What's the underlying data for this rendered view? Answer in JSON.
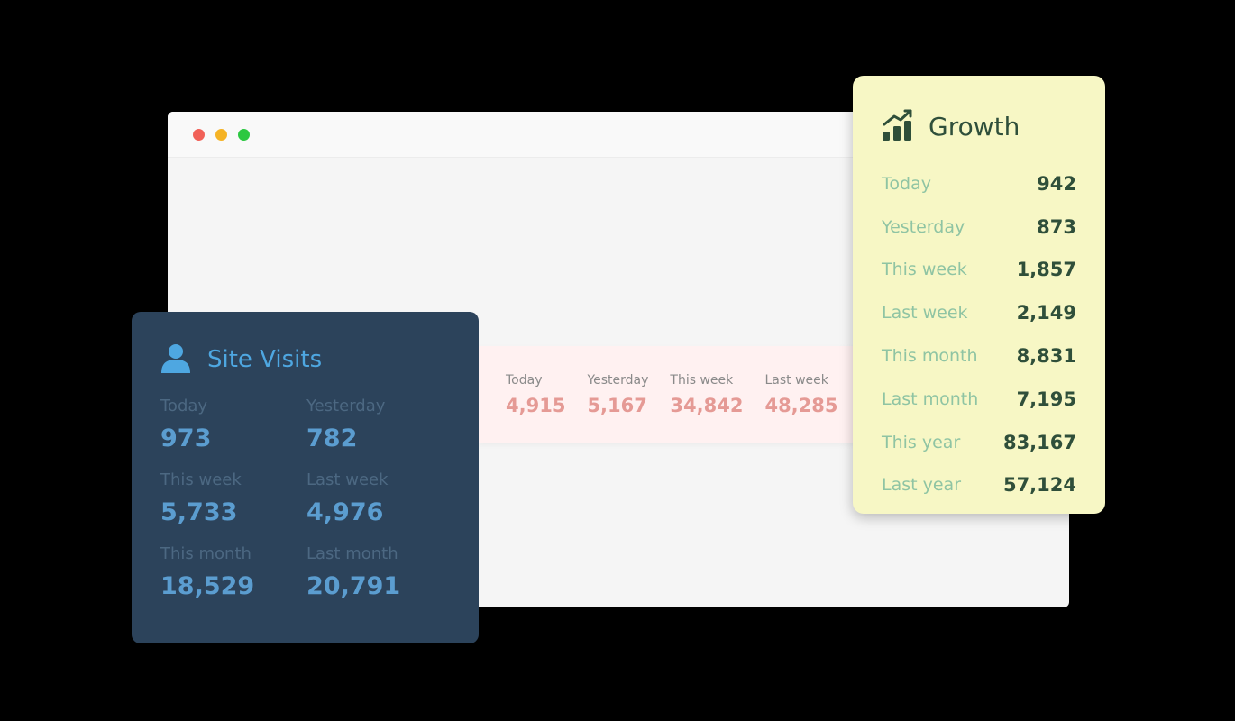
{
  "colors": {
    "window_red": "#f16158",
    "window_yellow": "#f5b325",
    "window_green": "#2cc841"
  },
  "strip": {
    "items": [
      {
        "label": "Today",
        "value": "4,915"
      },
      {
        "label": "Yesterday",
        "value": "5,167"
      },
      {
        "label": "This week",
        "value": "34,842"
      },
      {
        "label": "Last week",
        "value": "48,285"
      }
    ]
  },
  "visits": {
    "title": "Site Visits",
    "icon": "user-icon",
    "items": [
      {
        "label": "Today",
        "value": "973"
      },
      {
        "label": "Yesterday",
        "value": "782"
      },
      {
        "label": "This week",
        "value": "5,733"
      },
      {
        "label": "Last week",
        "value": "4,976"
      },
      {
        "label": "This month",
        "value": "18,529"
      },
      {
        "label": "Last month",
        "value": "20,791"
      }
    ]
  },
  "growth": {
    "title": "Growth",
    "icon": "growth-chart-icon",
    "rows": [
      {
        "label": "Today",
        "value": "942"
      },
      {
        "label": "Yesterday",
        "value": "873"
      },
      {
        "label": "This week",
        "value": "1,857"
      },
      {
        "label": "Last week",
        "value": "2,149"
      },
      {
        "label": "This month",
        "value": "8,831"
      },
      {
        "label": "Last month",
        "value": "7,195"
      },
      {
        "label": "This year",
        "value": "83,167"
      },
      {
        "label": "Last year",
        "value": "57,124"
      }
    ]
  }
}
